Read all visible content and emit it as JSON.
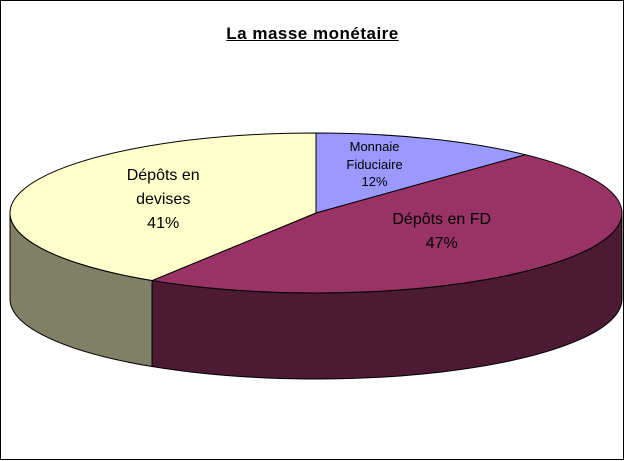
{
  "chart_data": {
    "type": "pie3d",
    "title": "La masse monétaire",
    "categories": [
      "Monnaie Fiduciaire",
      "Dépôts en FD",
      "Dépôts en devises"
    ],
    "values": [
      12,
      47,
      41
    ],
    "value_labels": [
      "12%",
      "47%",
      "41%"
    ],
    "colors": [
      "#9999ff",
      "#993366",
      "#ffffcc"
    ],
    "side_colors": [
      "#4d4d80",
      "#4d1a33",
      "#808066"
    ]
  }
}
